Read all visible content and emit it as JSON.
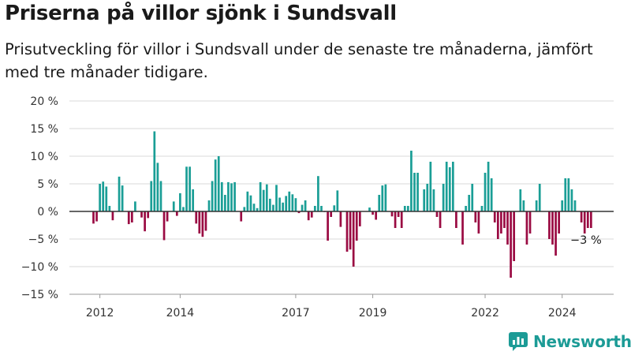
{
  "title": "Priserna på villor sjönk i Sundsvall",
  "subtitle": "Prisutveckling för villor i Sundsvall under de senaste tre månaderna, jämfört med tre månader tidigare.",
  "brand": "Newsworthy",
  "icons": {
    "logo": "newsworthy-logo-icon"
  },
  "colors": {
    "positive": "#1a9e96",
    "negative": "#9a0a42",
    "zero_line": "#333333",
    "grid": "#d9d9d9",
    "brand": "#1c9b96"
  },
  "chart_data": {
    "type": "bar",
    "title": "Priserna på villor sjönk i Sundsvall",
    "ylim": [
      -15,
      20
    ],
    "yticks": [
      -15,
      -10,
      -5,
      0,
      5,
      10,
      15,
      20
    ],
    "ytick_labels": [
      "−15 %",
      "−10 %",
      "−5 %",
      "0 %",
      "5 %",
      "10 %",
      "15 %",
      "20 %"
    ],
    "xtick_labels": [
      "2012",
      "2014",
      "2017",
      "2019",
      "2022",
      "2024"
    ],
    "xtick_positions": [
      2,
      27,
      63,
      87,
      122,
      146
    ],
    "grid": true,
    "end_label": "−3 %",
    "values": [
      -2.2,
      -1.8,
      5.0,
      5.4,
      4.5,
      1.0,
      -1.6,
      0.0,
      6.3,
      4.7,
      0.0,
      -2.3,
      -2.0,
      1.8,
      0.0,
      -1.1,
      -3.6,
      -1.2,
      5.5,
      14.5,
      8.8,
      5.5,
      -5.2,
      -1.8,
      0.0,
      1.8,
      -0.8,
      3.3,
      0.8,
      8.1,
      8.1,
      4.0,
      -2.2,
      -4.0,
      -4.6,
      -3.5,
      2.0,
      5.5,
      9.4,
      10.0,
      5.3,
      3.0,
      5.3,
      5.1,
      5.3,
      0.0,
      -1.8,
      0.8,
      3.6,
      2.9,
      1.4,
      0.6,
      5.3,
      3.9,
      4.9,
      2.3,
      1.2,
      4.8,
      2.5,
      1.6,
      2.8,
      3.6,
      3.1,
      2.4,
      -0.3,
      1.2,
      2.0,
      -1.6,
      -1.1,
      1.0,
      6.4,
      1.0,
      -0.1,
      -5.3,
      -1.0,
      1.1,
      3.8,
      -2.8,
      0.0,
      -7.3,
      -6.9,
      -10.0,
      -5.3,
      -2.7,
      0.0,
      0.0,
      0.7,
      -0.6,
      -1.5,
      3.0,
      4.7,
      4.9,
      0.0,
      -0.9,
      -3.0,
      -1.0,
      -3.0,
      1.0,
      1.0,
      11.0,
      7.0,
      7.0,
      0.0,
      4.0,
      5.0,
      9.0,
      4.0,
      -1.0,
      -3.0,
      5.0,
      9.0,
      8.0,
      9.0,
      -3.0,
      0.0,
      -6.0,
      1.0,
      3.0,
      5.0,
      -2.0,
      -4.0,
      1.0,
      7.0,
      9.0,
      6.0,
      -2.0,
      -5.0,
      -4.0,
      -3.0,
      -6.0,
      -12.0,
      -9.0,
      0.0,
      4.0,
      2.0,
      -6.0,
      -4.0,
      0.0,
      2.0,
      5.0,
      0.0,
      0.0,
      -5.0,
      -6.0,
      -8.0,
      -4.0,
      2.0,
      6.0,
      6.0,
      4.0,
      2.0,
      0.0,
      -2.0,
      -4.0,
      -3.0,
      -3.0
    ]
  }
}
